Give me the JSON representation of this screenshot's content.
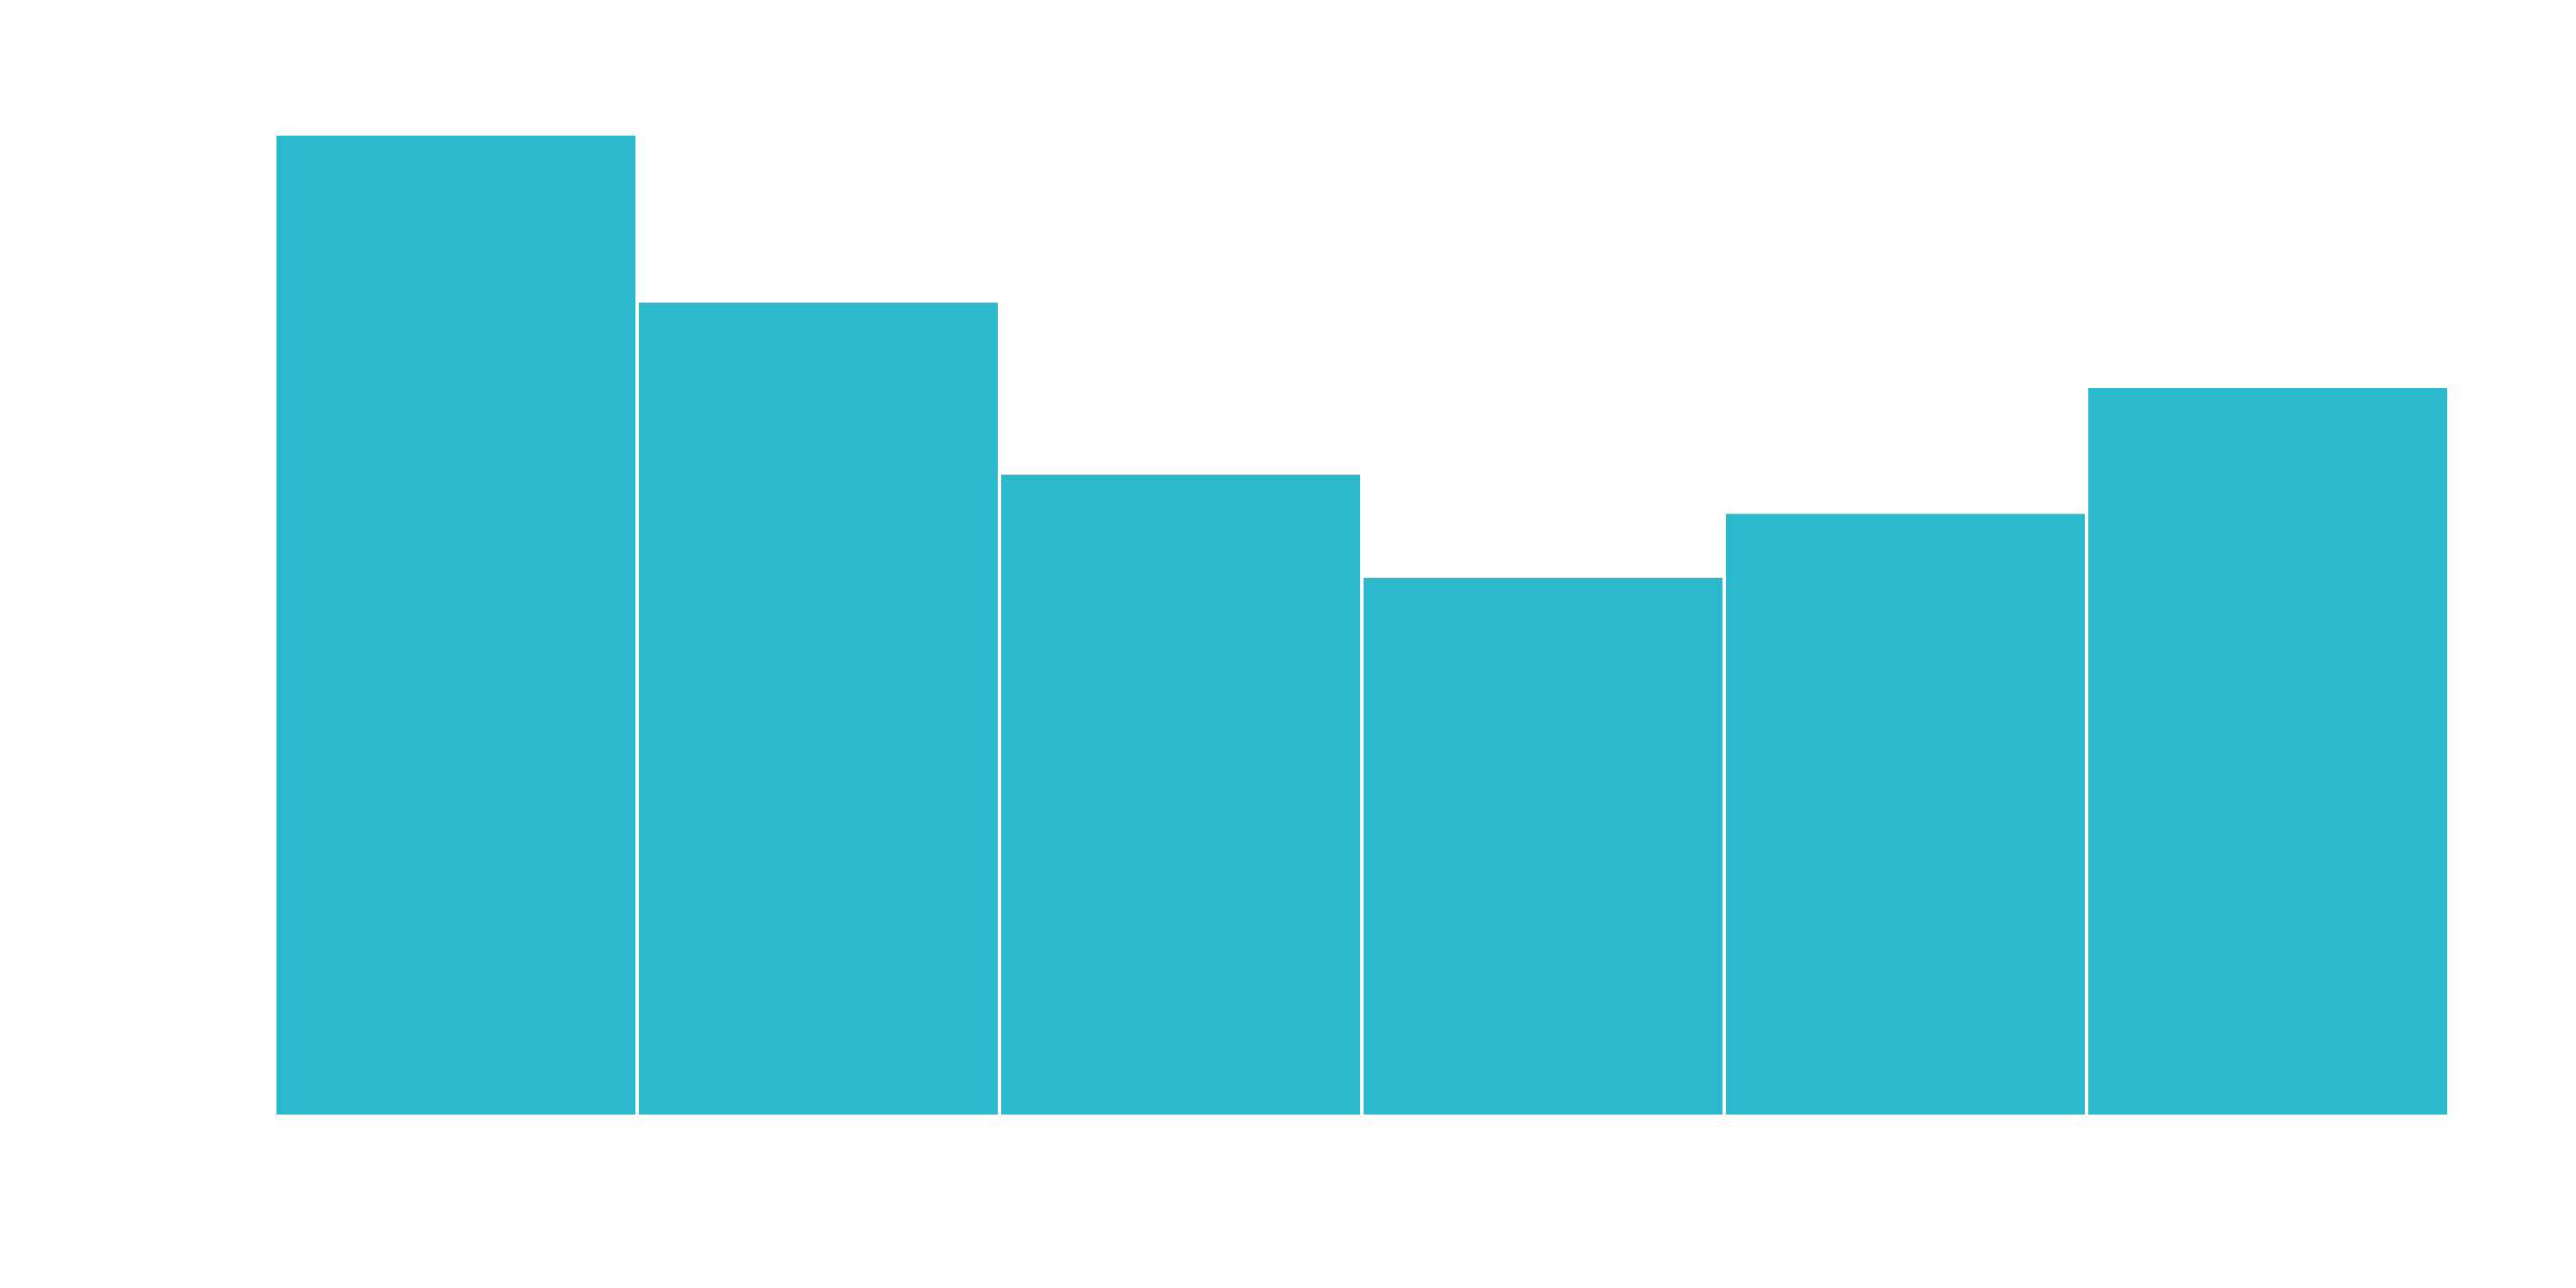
{
  "chart_data": {
    "type": "histogram",
    "bins": [
      0,
      1,
      2,
      3,
      4,
      5,
      6
    ],
    "values": [
      100,
      83,
      65.5,
      55,
      61.5,
      74.3
    ],
    "ylim": [
      0,
      100
    ],
    "grid": false,
    "bar_color": "#2bb9cc",
    "bar_edge_color": "#ffffff",
    "background": "#ffffff"
  }
}
